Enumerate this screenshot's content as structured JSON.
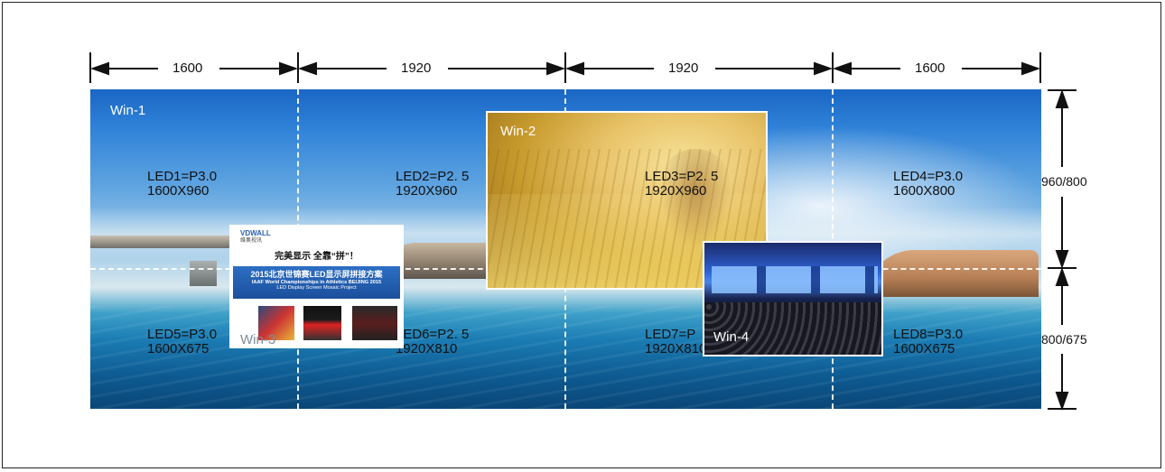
{
  "widths": [
    "1600",
    "1920",
    "1920",
    "1600"
  ],
  "heights": [
    "960/800",
    "800/675"
  ],
  "windows": {
    "win1": "Win-1",
    "win2": "Win-2",
    "win3": "Win-3",
    "win4": "Win-4"
  },
  "leds": [
    {
      "name": "LED1=P3.0",
      "res": "1600X960"
    },
    {
      "name": "LED2=P2. 5",
      "res": "1920X960"
    },
    {
      "name": "LED3=P2. 5",
      "res": "1920X960"
    },
    {
      "name": "LED4=P3.0",
      "res": "1600X800"
    },
    {
      "name": "LED5=P3.0",
      "res": "1600X675"
    },
    {
      "name": "LED6=P2. 5",
      "res": "1920X810"
    },
    {
      "name": "LED7=P",
      "res": "1920X810"
    },
    {
      "name": "LED8=P3.0",
      "res": "1600X675"
    }
  ],
  "win3_content": {
    "logo": "VDWALL",
    "logo_sub": "维奥视讯",
    "slogan": "完美显示 全靠“拼”！",
    "banner_title": "2015北京世锦赛LED显示屏拼接方案",
    "banner_line2": "IAAF World Championships in Athletics BEIJING 2015",
    "banner_line3": "LED Display Screen Mosaic Project"
  }
}
